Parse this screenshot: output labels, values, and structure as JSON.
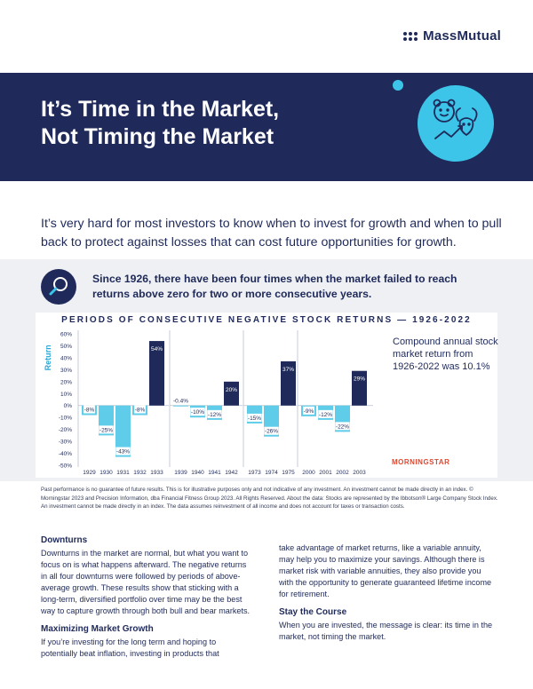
{
  "brand": {
    "name": "MassMutual"
  },
  "banner": {
    "title_line1": "It’s Time in the Market,",
    "title_line2": "Not Timing the Market",
    "illustration": "bull-and-bear-icon"
  },
  "intro": "It’s very hard for most investors to know when to invest for growth and when to pull back to protect against losses that can cost future opportunities for growth.",
  "callout": {
    "icon": "magnifier-icon",
    "text": "Since 1926, there have been four times when the market failed to reach returns above zero for two or more consecutive years."
  },
  "chart_data": {
    "type": "bar",
    "title": "PERIODS OF CONSECUTIVE NEGATIVE STOCK RETURNS — 1926-2022",
    "ylabel": "Return",
    "ylim": [
      -50,
      60
    ],
    "yticks": [
      "60%",
      "50%",
      "40%",
      "30%",
      "20%",
      "10%",
      "0%",
      "-10%",
      "-20%",
      "-30%",
      "-40%",
      "-50%"
    ],
    "groups": [
      {
        "bars": [
          {
            "year": "1929",
            "value": -8,
            "label": "-8%"
          },
          {
            "year": "1930",
            "value": -25,
            "label": "-25%"
          },
          {
            "year": "1931",
            "value": -43,
            "label": "-43%"
          },
          {
            "year": "1932",
            "value": -8,
            "label": "-8%"
          },
          {
            "year": "1933",
            "value": 54,
            "label": "54%"
          }
        ]
      },
      {
        "bars": [
          {
            "year": "1939",
            "value": -0.4,
            "label": "-0.4%"
          },
          {
            "year": "1940",
            "value": -10,
            "label": "-10%"
          },
          {
            "year": "1941",
            "value": -12,
            "label": "-12%"
          },
          {
            "year": "1942",
            "value": 20,
            "label": "20%"
          }
        ]
      },
      {
        "bars": [
          {
            "year": "1973",
            "value": -15,
            "label": "-15%"
          },
          {
            "year": "1974",
            "value": -26,
            "label": "-26%"
          },
          {
            "year": "1975",
            "value": 37,
            "label": "37%"
          }
        ]
      },
      {
        "bars": [
          {
            "year": "2000",
            "value": -9,
            "label": "-9%"
          },
          {
            "year": "2001",
            "value": -12,
            "label": "-12%"
          },
          {
            "year": "2002",
            "value": -22,
            "label": "-22%"
          },
          {
            "year": "2003",
            "value": 29,
            "label": "29%"
          }
        ]
      }
    ],
    "colors": {
      "negative": "#5fcde9",
      "positive": "#1f2a5a",
      "axis_label": "#2aa6d8"
    },
    "grid": false
  },
  "cagr_note": "Compound annual stock market return from 1926-2022 was 10.1%",
  "source_logo": "MORNINGSTAR",
  "disclaimer": "Past performance is no guarantee of future results. This is for illustrative purposes only and not indicative of any investment. An investment cannot be made directly in an index. © Morningstar 2023 and Precision Information, dba Financial Fitness Group 2023. All Rights Reserved. About the data: Stocks are represented by the Ibbotson® Large Company Stock Index. An investment cannot be made directly in an index. The data assumes reinvestment of all income and does not account for taxes or transaction costs.",
  "sections": {
    "downturns_heading": "Downturns",
    "downturns_body": "Downturns in the market are normal, but what you want to focus on is what happens afterward. The negative returns in all four downturns were followed by periods of above-average growth. These results show that sticking with a long-term, diversified portfolio over time may be the best way to capture growth through both bull and bear markets.",
    "growth_heading": "Maximizing Market Growth",
    "growth_body": "If you’re investing for the long term and hoping to potentially beat inflation, investing in products that",
    "growth_body_cont": "take advantage of market returns, like a variable annuity, may help you to maximize your savings. Although there is market risk with variable annuities, they also provide you with the opportunity to generate guaranteed lifetime income for retirement.",
    "course_heading": "Stay the Course",
    "course_body": "When you are invested, the message is clear: its time in the market, not timing the market."
  }
}
